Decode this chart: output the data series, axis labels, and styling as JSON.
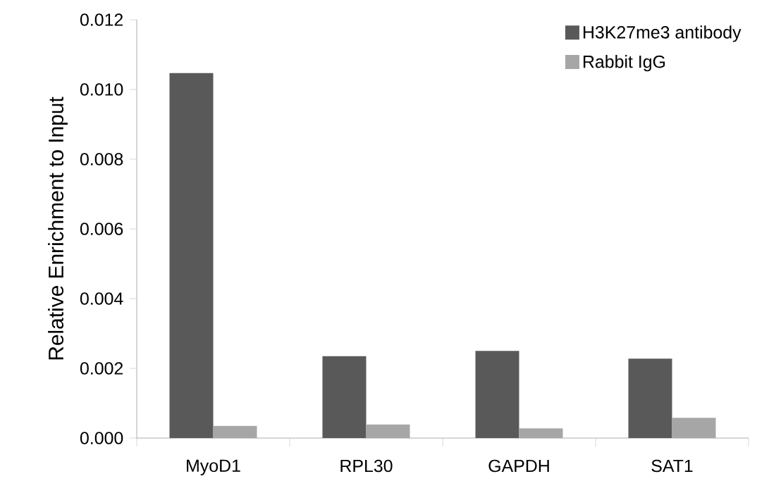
{
  "chart_data": {
    "type": "bar",
    "ylabel": "Relative Enrichment to Input",
    "categories": [
      "MyoD1",
      "RPL30",
      "GAPDH",
      "SAT1"
    ],
    "series": [
      {
        "name": "H3K27me3 antibody",
        "color": "#595959",
        "values": [
          0.01047,
          0.00235,
          0.0025,
          0.00228
        ]
      },
      {
        "name": "Rabbit IgG",
        "color": "#a6a6a6",
        "values": [
          0.00035,
          0.00039,
          0.00028,
          0.00058
        ]
      }
    ],
    "ylim": [
      0,
      0.012
    ],
    "yticks": [
      {
        "value": 0,
        "label": "0.000"
      },
      {
        "value": 0.002,
        "label": "0.002"
      },
      {
        "value": 0.004,
        "label": "0.004"
      },
      {
        "value": 0.006,
        "label": "0.006"
      },
      {
        "value": 0.008,
        "label": "0.008"
      },
      {
        "value": 0.01,
        "label": "0.010"
      },
      {
        "value": 0.012,
        "label": "0.012"
      }
    ],
    "legend": "top right"
  }
}
